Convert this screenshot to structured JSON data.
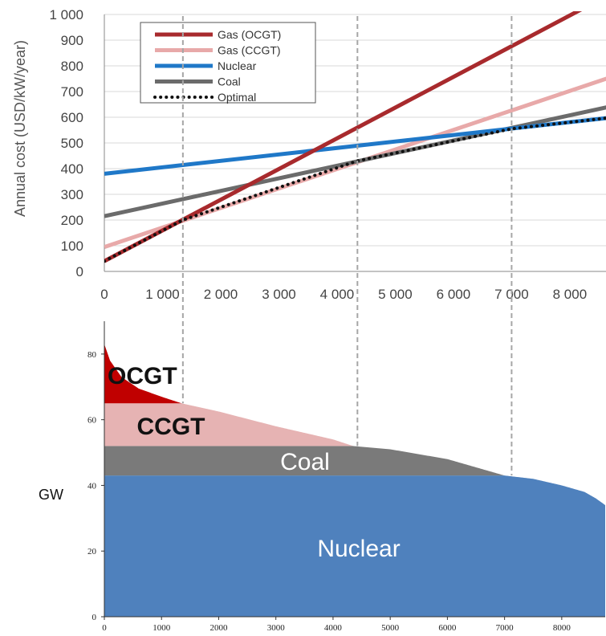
{
  "chart_data": [
    {
      "type": "line",
      "title": "",
      "xlabel": "",
      "ylabel": "Annual cost (USD/kW/year)",
      "xlim": [
        0,
        8760
      ],
      "ylim": [
        0,
        1000
      ],
      "x_ticks": [
        "0",
        "1 000",
        "2 000",
        "3 000",
        "4 000",
        "5 000",
        "6 000",
        "7 000",
        "8 000"
      ],
      "y_ticks": [
        "0",
        "100",
        "200",
        "300",
        "400",
        "500",
        "600",
        "700",
        "800",
        "900",
        "1 000"
      ],
      "grid": true,
      "legend_position": "top-left",
      "series": [
        {
          "name": "Gas (OCGT)",
          "color": "#a82a2d",
          "style": "solid",
          "x": [
            0,
            8200
          ],
          "y": [
            40,
            1020
          ]
        },
        {
          "name": "Gas (CCGT)",
          "color": "#e8a9a9",
          "style": "solid",
          "x": [
            0,
            8760
          ],
          "y": [
            95,
            760
          ]
        },
        {
          "name": "Nuclear",
          "color": "#1f78c8",
          "style": "solid",
          "x": [
            0,
            8760
          ],
          "y": [
            380,
            600
          ]
        },
        {
          "name": "Coal",
          "color": "#6b6b6b",
          "style": "solid",
          "x": [
            0,
            8760
          ],
          "y": [
            215,
            645
          ]
        },
        {
          "name": "Optimal",
          "color": "#111111",
          "style": "dotted",
          "x": [
            0,
            1350,
            4350,
            7000,
            8760
          ],
          "y": [
            40,
            200,
            430,
            555,
            600
          ]
        }
      ],
      "breakpoints_x": [
        1350,
        4350,
        7000
      ]
    },
    {
      "type": "area",
      "title": "",
      "xlabel": "",
      "ylabel": "GW",
      "xlim": [
        0,
        8760
      ],
      "ylim": [
        0,
        90
      ],
      "x_ticks": [
        "0",
        "1000",
        "2000",
        "3000",
        "4000",
        "5000",
        "6000",
        "7000",
        "8000"
      ],
      "y_ticks": [
        "0",
        "20",
        "40",
        "60",
        "80"
      ],
      "load_curve": {
        "x": [
          0,
          100,
          300,
          600,
          1000,
          1350,
          2000,
          3000,
          4000,
          4350,
          5000,
          6000,
          7000,
          7500,
          8000,
          8400,
          8600,
          8760
        ],
        "y": [
          83,
          78,
          73,
          69.5,
          67,
          65,
          62.5,
          58,
          54,
          52,
          51,
          48,
          43,
          42,
          40,
          38,
          36,
          34
        ]
      },
      "bands": [
        {
          "name": "Nuclear",
          "color": "#4f81bd",
          "from": 0,
          "to": 43,
          "label_color": "#ffffff"
        },
        {
          "name": "Coal",
          "color": "#7a7a7a",
          "from": 43,
          "to": 52,
          "label_color": "#ffffff"
        },
        {
          "name": "CCGT",
          "color": "#e6b3b3",
          "from": 52,
          "to": 65,
          "label_color": "#111111"
        },
        {
          "name": "OCGT",
          "color": "#c00000",
          "from": 65,
          "to": 90,
          "label_color": "#111111"
        }
      ]
    }
  ]
}
